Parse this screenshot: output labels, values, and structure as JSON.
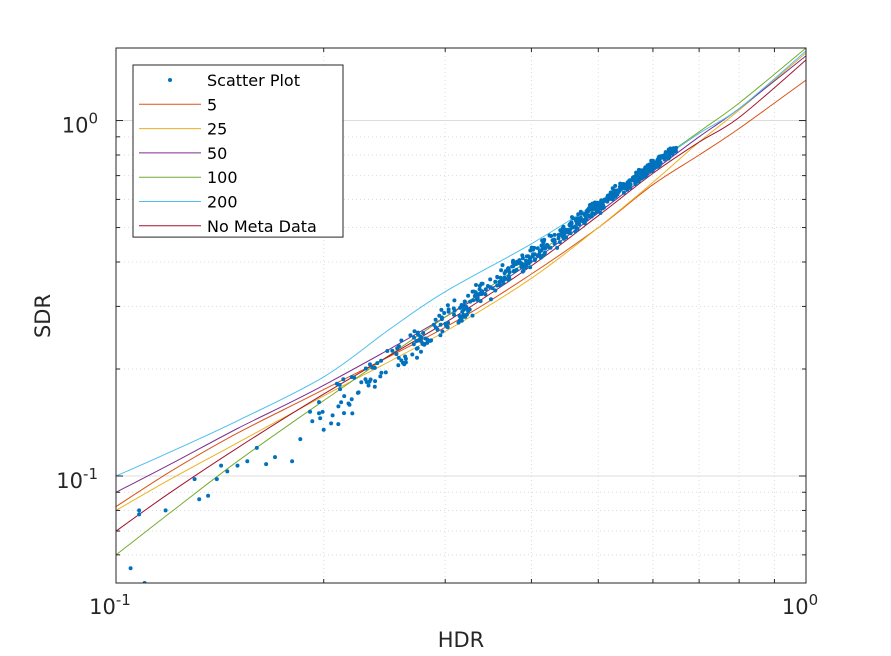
{
  "chart_data": {
    "type": "line",
    "scale": "log-log",
    "xlabel": "HDR",
    "ylabel": "SDR",
    "xlim": [
      0.1,
      1.0
    ],
    "ylim": [
      0.05,
      1.6
    ],
    "x_ticks": [
      {
        "value": 0.1,
        "base": "10",
        "exp": "-1"
      },
      {
        "value": 1.0,
        "base": "10",
        "exp": "0"
      }
    ],
    "y_ticks": [
      {
        "value": 0.1,
        "base": "10",
        "exp": "-1"
      },
      {
        "value": 1.0,
        "base": "10",
        "exp": "0"
      }
    ],
    "grid": true,
    "legend_position": "top-left",
    "series": [
      {
        "name": "5",
        "color": "#D95319",
        "x": [
          0.1,
          0.12,
          0.15,
          0.2,
          0.3,
          0.4,
          0.5,
          0.6,
          0.7,
          0.8,
          1.0
        ],
        "y": [
          0.082,
          0.103,
          0.132,
          0.175,
          0.262,
          0.37,
          0.5,
          0.66,
          0.8,
          0.95,
          1.3
        ]
      },
      {
        "name": "25",
        "color": "#EDB120",
        "x": [
          0.1,
          0.12,
          0.15,
          0.2,
          0.3,
          0.4,
          0.5,
          0.6,
          0.7,
          0.8,
          1.0
        ],
        "y": [
          0.08,
          0.098,
          0.124,
          0.168,
          0.255,
          0.36,
          0.5,
          0.67,
          0.87,
          1.07,
          1.55
        ]
      },
      {
        "name": "50",
        "color": "#7E2F8E",
        "x": [
          0.1,
          0.12,
          0.15,
          0.2,
          0.3,
          0.4,
          0.5,
          0.6,
          0.7,
          0.8,
          1.0
        ],
        "y": [
          0.09,
          0.108,
          0.136,
          0.18,
          0.28,
          0.4,
          0.55,
          0.72,
          0.9,
          1.08,
          1.52
        ]
      },
      {
        "name": "100",
        "color": "#77AC30",
        "x": [
          0.1,
          0.12,
          0.15,
          0.2,
          0.3,
          0.4,
          0.5,
          0.6,
          0.7,
          0.8,
          1.0
        ],
        "y": [
          0.06,
          0.079,
          0.11,
          0.163,
          0.28,
          0.41,
          0.57,
          0.75,
          0.93,
          1.12,
          1.6
        ]
      },
      {
        "name": "200",
        "color": "#4DBEEE",
        "x": [
          0.1,
          0.12,
          0.15,
          0.2,
          0.25,
          0.3,
          0.4,
          0.5,
          0.6,
          0.7,
          0.8,
          1.0
        ],
        "y": [
          0.1,
          0.117,
          0.143,
          0.19,
          0.26,
          0.33,
          0.45,
          0.59,
          0.75,
          0.92,
          1.08,
          1.57
        ]
      },
      {
        "name": "No Meta Data",
        "color": "#A2142F",
        "x": [
          0.1,
          0.12,
          0.15,
          0.2,
          0.3,
          0.4,
          0.5,
          0.6,
          0.7,
          0.8,
          1.0
        ],
        "y": [
          0.07,
          0.09,
          0.12,
          0.17,
          0.27,
          0.39,
          0.54,
          0.71,
          0.87,
          1.02,
          1.48
        ]
      }
    ],
    "scatter": {
      "name": "Scatter Plot",
      "color": "#0072BD",
      "outliers": [
        {
          "x": 0.105,
          "y": 0.055
        },
        {
          "x": 0.11,
          "y": 0.05
        },
        {
          "x": 0.108,
          "y": 0.078
        },
        {
          "x": 0.108,
          "y": 0.08
        },
        {
          "x": 0.118,
          "y": 0.08
        },
        {
          "x": 0.13,
          "y": 0.098
        },
        {
          "x": 0.132,
          "y": 0.086
        },
        {
          "x": 0.136,
          "y": 0.088
        },
        {
          "x": 0.14,
          "y": 0.098
        },
        {
          "x": 0.142,
          "y": 0.107
        },
        {
          "x": 0.145,
          "y": 0.103
        },
        {
          "x": 0.15,
          "y": 0.107
        },
        {
          "x": 0.155,
          "y": 0.11
        },
        {
          "x": 0.16,
          "y": 0.12
        },
        {
          "x": 0.165,
          "y": 0.108
        },
        {
          "x": 0.17,
          "y": 0.113
        },
        {
          "x": 0.18,
          "y": 0.11
        },
        {
          "x": 0.185,
          "y": 0.127
        },
        {
          "x": 0.2,
          "y": 0.135
        },
        {
          "x": 0.21,
          "y": 0.14
        },
        {
          "x": 0.22,
          "y": 0.15
        }
      ],
      "trend": {
        "x_min": 0.19,
        "x_max": 0.65,
        "y_at_x_min": 0.14,
        "y_at_x_max": 0.84
      },
      "count": 600,
      "spread": 0.05
    }
  }
}
